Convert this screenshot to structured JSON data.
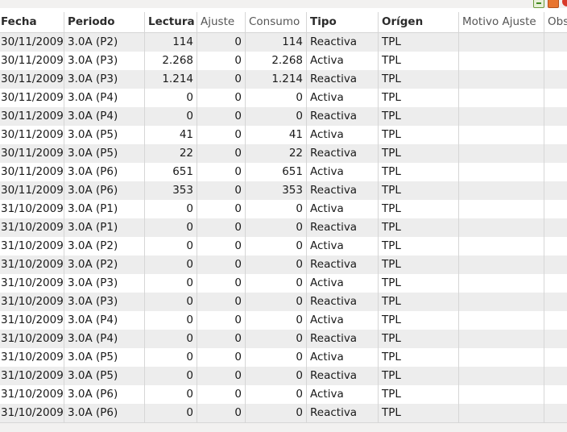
{
  "toolbar": {
    "icons": [
      "add-record-icon",
      "edit-record-icon",
      "delete-record-icon"
    ]
  },
  "table": {
    "columns": [
      {
        "key": "fecha",
        "label": "Fecha"
      },
      {
        "key": "periodo",
        "label": "Periodo"
      },
      {
        "key": "lectura",
        "label": "Lectura"
      },
      {
        "key": "ajuste",
        "label": "Ajuste"
      },
      {
        "key": "consumo",
        "label": "Consumo"
      },
      {
        "key": "tipo",
        "label": "Tipo"
      },
      {
        "key": "origen",
        "label": "Orígen"
      },
      {
        "key": "motivo",
        "label": "Motivo Ajuste"
      },
      {
        "key": "obs",
        "label": "Obs"
      }
    ],
    "rows": [
      {
        "fecha": "30/11/2009",
        "periodo": "3.0A (P2)",
        "lectura": "114",
        "ajuste": "0",
        "consumo": "114",
        "tipo": "Reactiva",
        "origen": "TPL",
        "motivo": "",
        "obs": ""
      },
      {
        "fecha": "30/11/2009",
        "periodo": "3.0A (P3)",
        "lectura": "2.268",
        "ajuste": "0",
        "consumo": "2.268",
        "tipo": "Activa",
        "origen": "TPL",
        "motivo": "",
        "obs": ""
      },
      {
        "fecha": "30/11/2009",
        "periodo": "3.0A (P3)",
        "lectura": "1.214",
        "ajuste": "0",
        "consumo": "1.214",
        "tipo": "Reactiva",
        "origen": "TPL",
        "motivo": "",
        "obs": ""
      },
      {
        "fecha": "30/11/2009",
        "periodo": "3.0A (P4)",
        "lectura": "0",
        "ajuste": "0",
        "consumo": "0",
        "tipo": "Activa",
        "origen": "TPL",
        "motivo": "",
        "obs": ""
      },
      {
        "fecha": "30/11/2009",
        "periodo": "3.0A (P4)",
        "lectura": "0",
        "ajuste": "0",
        "consumo": "0",
        "tipo": "Reactiva",
        "origen": "TPL",
        "motivo": "",
        "obs": ""
      },
      {
        "fecha": "30/11/2009",
        "periodo": "3.0A (P5)",
        "lectura": "41",
        "ajuste": "0",
        "consumo": "41",
        "tipo": "Activa",
        "origen": "TPL",
        "motivo": "",
        "obs": ""
      },
      {
        "fecha": "30/11/2009",
        "periodo": "3.0A (P5)",
        "lectura": "22",
        "ajuste": "0",
        "consumo": "22",
        "tipo": "Reactiva",
        "origen": "TPL",
        "motivo": "",
        "obs": ""
      },
      {
        "fecha": "30/11/2009",
        "periodo": "3.0A (P6)",
        "lectura": "651",
        "ajuste": "0",
        "consumo": "651",
        "tipo": "Activa",
        "origen": "TPL",
        "motivo": "",
        "obs": ""
      },
      {
        "fecha": "30/11/2009",
        "periodo": "3.0A (P6)",
        "lectura": "353",
        "ajuste": "0",
        "consumo": "353",
        "tipo": "Reactiva",
        "origen": "TPL",
        "motivo": "",
        "obs": ""
      },
      {
        "fecha": "31/10/2009",
        "periodo": "3.0A (P1)",
        "lectura": "0",
        "ajuste": "0",
        "consumo": "0",
        "tipo": "Activa",
        "origen": "TPL",
        "motivo": "",
        "obs": ""
      },
      {
        "fecha": "31/10/2009",
        "periodo": "3.0A (P1)",
        "lectura": "0",
        "ajuste": "0",
        "consumo": "0",
        "tipo": "Reactiva",
        "origen": "TPL",
        "motivo": "",
        "obs": ""
      },
      {
        "fecha": "31/10/2009",
        "periodo": "3.0A (P2)",
        "lectura": "0",
        "ajuste": "0",
        "consumo": "0",
        "tipo": "Activa",
        "origen": "TPL",
        "motivo": "",
        "obs": ""
      },
      {
        "fecha": "31/10/2009",
        "periodo": "3.0A (P2)",
        "lectura": "0",
        "ajuste": "0",
        "consumo": "0",
        "tipo": "Reactiva",
        "origen": "TPL",
        "motivo": "",
        "obs": ""
      },
      {
        "fecha": "31/10/2009",
        "periodo": "3.0A (P3)",
        "lectura": "0",
        "ajuste": "0",
        "consumo": "0",
        "tipo": "Activa",
        "origen": "TPL",
        "motivo": "",
        "obs": ""
      },
      {
        "fecha": "31/10/2009",
        "periodo": "3.0A (P3)",
        "lectura": "0",
        "ajuste": "0",
        "consumo": "0",
        "tipo": "Reactiva",
        "origen": "TPL",
        "motivo": "",
        "obs": ""
      },
      {
        "fecha": "31/10/2009",
        "periodo": "3.0A (P4)",
        "lectura": "0",
        "ajuste": "0",
        "consumo": "0",
        "tipo": "Activa",
        "origen": "TPL",
        "motivo": "",
        "obs": ""
      },
      {
        "fecha": "31/10/2009",
        "periodo": "3.0A (P4)",
        "lectura": "0",
        "ajuste": "0",
        "consumo": "0",
        "tipo": "Reactiva",
        "origen": "TPL",
        "motivo": "",
        "obs": ""
      },
      {
        "fecha": "31/10/2009",
        "periodo": "3.0A (P5)",
        "lectura": "0",
        "ajuste": "0",
        "consumo": "0",
        "tipo": "Activa",
        "origen": "TPL",
        "motivo": "",
        "obs": ""
      },
      {
        "fecha": "31/10/2009",
        "periodo": "3.0A (P5)",
        "lectura": "0",
        "ajuste": "0",
        "consumo": "0",
        "tipo": "Reactiva",
        "origen": "TPL",
        "motivo": "",
        "obs": ""
      },
      {
        "fecha": "31/10/2009",
        "periodo": "3.0A (P6)",
        "lectura": "0",
        "ajuste": "0",
        "consumo": "0",
        "tipo": "Activa",
        "origen": "TPL",
        "motivo": "",
        "obs": ""
      },
      {
        "fecha": "31/10/2009",
        "periodo": "3.0A (P6)",
        "lectura": "0",
        "ajuste": "0",
        "consumo": "0",
        "tipo": "Reactiva",
        "origen": "TPL",
        "motivo": "",
        "obs": ""
      }
    ]
  }
}
